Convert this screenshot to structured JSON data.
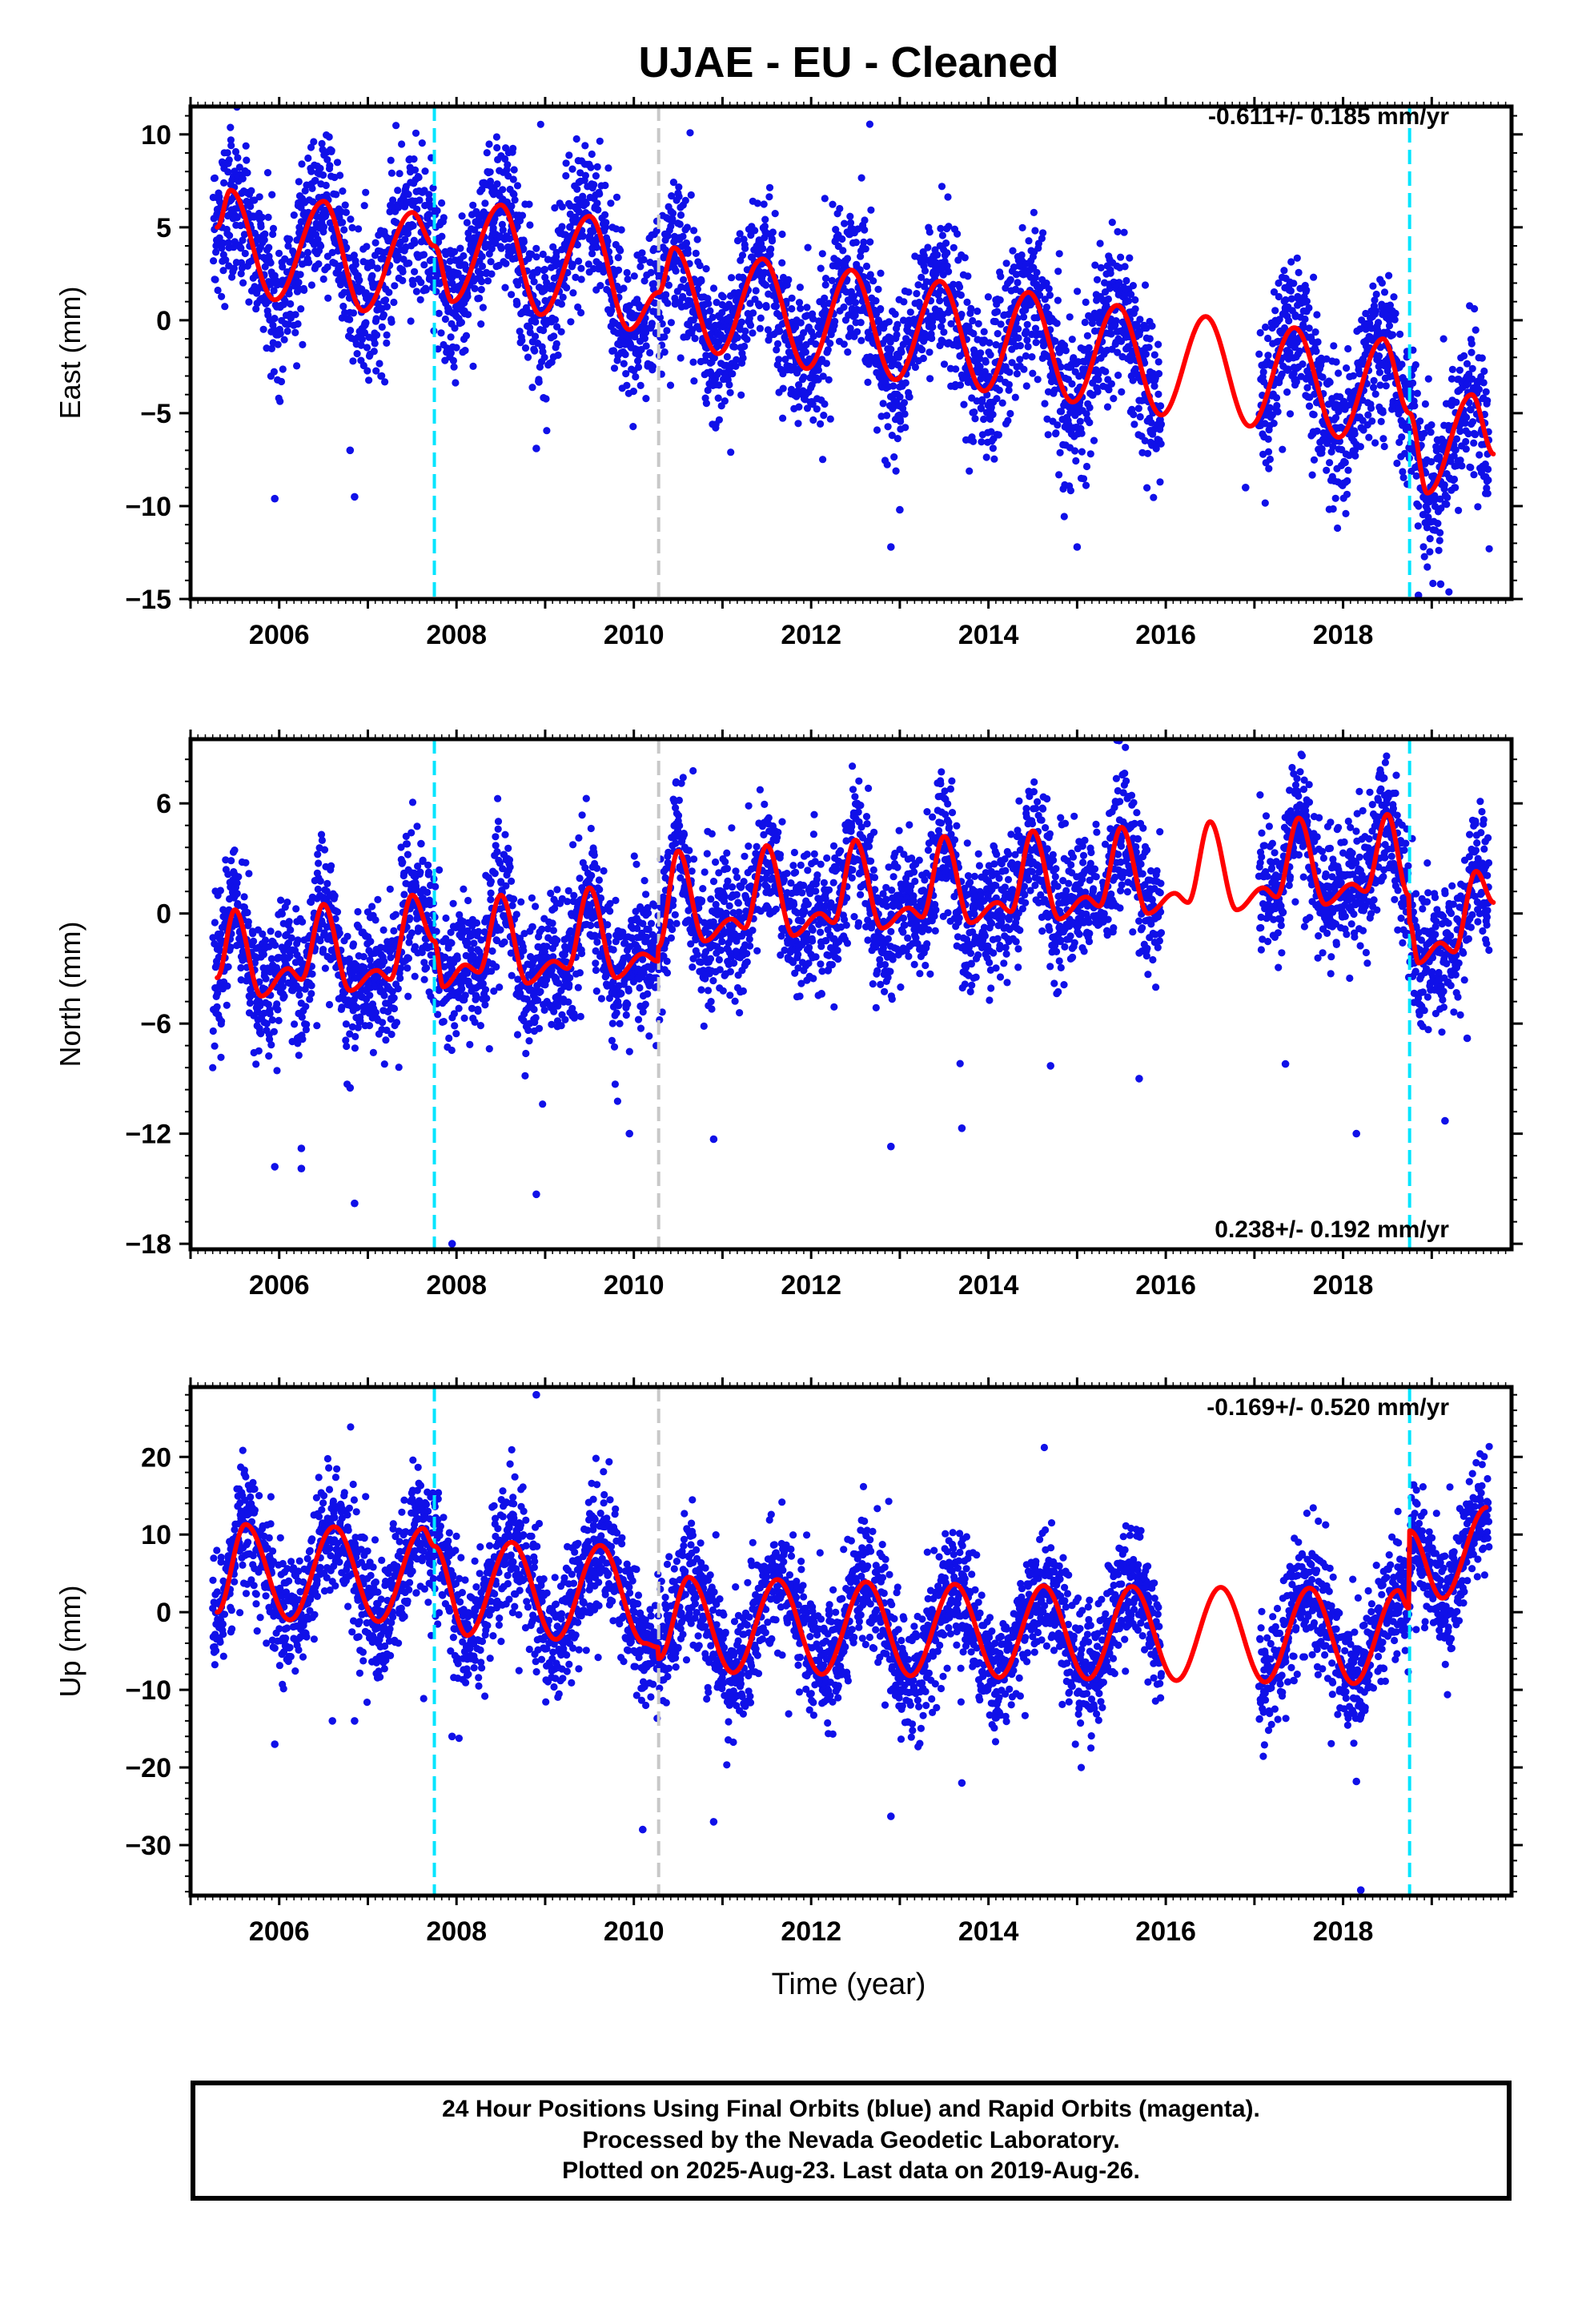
{
  "title": "UJAE  - EU - Cleaned",
  "xlabel": "Time (year)",
  "footer": {
    "line1": "24 Hour Positions Using Final Orbits (blue) and Rapid Orbits (magenta).",
    "line2": "Processed by the Nevada Geodetic Laboratory.",
    "line3": "Plotted on 2025-Aug-23. Last data on 2019-Aug-26."
  },
  "colors": {
    "points": "#1010e8",
    "model": "#ff0000",
    "equipment_change": "#00e5ff",
    "earthquake": "#c8c8c8"
  },
  "chart_data": [
    {
      "type": "scatter",
      "component": "East",
      "ylabel": "East (mm)",
      "rate": "-0.611+/- 0.185 mm/yr",
      "xlim": [
        2005.0,
        2019.9
      ],
      "ylim": [
        -15,
        11.5
      ],
      "yticks": [
        10,
        5,
        0,
        -5,
        -10,
        -15
      ],
      "xticks": [
        2006,
        2008,
        2010,
        2012,
        2014,
        2016,
        2018
      ],
      "vlines_cyan": [
        2007.75,
        2018.75
      ],
      "vlines_gray": [
        2010.28
      ],
      "model_knots": [
        [
          2005.3,
          5.0
        ],
        [
          2005.45,
          7.0
        ],
        [
          2005.95,
          1.1
        ],
        [
          2006.5,
          6.4
        ],
        [
          2006.95,
          0.5
        ],
        [
          2007.5,
          5.8
        ],
        [
          2007.75,
          4.0
        ],
        [
          2007.95,
          1.0
        ],
        [
          2008.5,
          6.2
        ],
        [
          2008.95,
          0.3
        ],
        [
          2009.5,
          5.6
        ],
        [
          2009.95,
          -0.5
        ],
        [
          2010.28,
          1.5
        ],
        [
          2010.45,
          3.9
        ],
        [
          2010.95,
          -1.8
        ],
        [
          2011.45,
          3.3
        ],
        [
          2011.95,
          -2.6
        ],
        [
          2012.45,
          2.7
        ],
        [
          2012.95,
          -3.2
        ],
        [
          2013.45,
          2.1
        ],
        [
          2013.95,
          -3.8
        ],
        [
          2014.45,
          1.5
        ],
        [
          2014.95,
          -4.4
        ],
        [
          2015.45,
          0.8
        ],
        [
          2015.95,
          -5.1
        ],
        [
          2016.45,
          0.2
        ],
        [
          2016.95,
          -5.7
        ],
        [
          2017.45,
          -0.4
        ],
        [
          2017.95,
          -6.3
        ],
        [
          2018.45,
          -1.0
        ],
        [
          2018.75,
          -5.0
        ],
        [
          2018.95,
          -9.3
        ],
        [
          2019.45,
          -4.0
        ],
        [
          2019.7,
          -7.2
        ]
      ],
      "points_summary": {
        "start": 2005.25,
        "end": 2019.65,
        "gap": [
          2015.95,
          2017.05
        ],
        "scatter_mm": 2.0
      },
      "outliers": [
        [
          2005.95,
          -9.6
        ],
        [
          2006.85,
          -9.5
        ],
        [
          2006.8,
          -7.0
        ],
        [
          2008.9,
          -6.9
        ],
        [
          2012.9,
          -12.2
        ],
        [
          2013.0,
          -10.2
        ],
        [
          2015.0,
          -12.2
        ],
        [
          2016.9,
          -9.0
        ],
        [
          2019.1,
          -14.2
        ],
        [
          2018.85,
          -14.8
        ]
      ]
    },
    {
      "type": "scatter",
      "component": "North",
      "ylabel": "North (mm)",
      "rate": "0.238+/- 0.192 mm/yr",
      "xlim": [
        2005.0,
        2019.9
      ],
      "ylim": [
        -18.3,
        9.5
      ],
      "yticks": [
        6,
        0,
        -6,
        -12,
        -18
      ],
      "xticks": [
        2006,
        2008,
        2010,
        2012,
        2014,
        2016,
        2018
      ],
      "vlines_cyan": [
        2007.75,
        2018.75
      ],
      "vlines_gray": [
        2010.28
      ],
      "model_knots": [
        [
          2005.3,
          -3.5
        ],
        [
          2005.5,
          0.2
        ],
        [
          2005.8,
          -4.5
        ],
        [
          2006.1,
          -3.0
        ],
        [
          2006.25,
          -3.6
        ],
        [
          2006.5,
          0.5
        ],
        [
          2006.8,
          -4.2
        ],
        [
          2007.1,
          -3.1
        ],
        [
          2007.25,
          -3.6
        ],
        [
          2007.5,
          1.0
        ],
        [
          2007.75,
          -1.5
        ],
        [
          2007.85,
          -4.0
        ],
        [
          2008.1,
          -2.8
        ],
        [
          2008.25,
          -3.2
        ],
        [
          2008.5,
          1.0
        ],
        [
          2008.8,
          -3.8
        ],
        [
          2009.1,
          -2.6
        ],
        [
          2009.25,
          -3.0
        ],
        [
          2009.5,
          1.4
        ],
        [
          2009.8,
          -3.5
        ],
        [
          2010.1,
          -2.2
        ],
        [
          2010.27,
          -2.6
        ],
        [
          2010.28,
          -1.8
        ],
        [
          2010.5,
          3.4
        ],
        [
          2010.8,
          -1.5
        ],
        [
          2011.1,
          -0.3
        ],
        [
          2011.25,
          -0.8
        ],
        [
          2011.5,
          3.7
        ],
        [
          2011.8,
          -1.2
        ],
        [
          2012.1,
          0.0
        ],
        [
          2012.25,
          -0.5
        ],
        [
          2012.5,
          4.0
        ],
        [
          2012.8,
          -0.8
        ],
        [
          2013.1,
          0.3
        ],
        [
          2013.25,
          -0.2
        ],
        [
          2013.5,
          4.2
        ],
        [
          2013.8,
          -0.5
        ],
        [
          2014.1,
          0.6
        ],
        [
          2014.25,
          0.1
        ],
        [
          2014.5,
          4.5
        ],
        [
          2014.8,
          -0.3
        ],
        [
          2015.1,
          0.9
        ],
        [
          2015.25,
          0.4
        ],
        [
          2015.5,
          4.7
        ],
        [
          2015.8,
          0.0
        ],
        [
          2016.1,
          1.1
        ],
        [
          2016.25,
          0.6
        ],
        [
          2016.5,
          5.0
        ],
        [
          2016.8,
          0.2
        ],
        [
          2017.1,
          1.4
        ],
        [
          2017.25,
          0.9
        ],
        [
          2017.5,
          5.2
        ],
        [
          2017.8,
          0.5
        ],
        [
          2018.1,
          1.6
        ],
        [
          2018.25,
          1.2
        ],
        [
          2018.5,
          5.4
        ],
        [
          2018.74,
          1.0
        ],
        [
          2018.75,
          -0.5
        ],
        [
          2018.85,
          -2.7
        ],
        [
          2019.1,
          -1.6
        ],
        [
          2019.25,
          -2.1
        ],
        [
          2019.5,
          2.3
        ],
        [
          2019.7,
          0.6
        ]
      ],
      "points_summary": {
        "start": 2005.25,
        "end": 2019.65,
        "gap": [
          2015.95,
          2017.05
        ],
        "scatter_mm": 1.8
      },
      "outliers": [
        [
          2005.95,
          -13.8
        ],
        [
          2006.25,
          -13.9
        ],
        [
          2006.25,
          -12.8
        ],
        [
          2006.85,
          -15.8
        ],
        [
          2006.8,
          -9.5
        ],
        [
          2007.6,
          3.8
        ],
        [
          2007.95,
          -18.0
        ],
        [
          2008.9,
          -15.3
        ],
        [
          2009.95,
          -12.0
        ],
        [
          2010.9,
          -12.3
        ],
        [
          2012.9,
          -12.7
        ],
        [
          2013.7,
          -11.7
        ],
        [
          2014.7,
          -8.3
        ],
        [
          2015.7,
          -9.0
        ],
        [
          2017.35,
          -8.2
        ],
        [
          2018.15,
          -12.0
        ],
        [
          2019.15,
          -11.3
        ],
        [
          2019.4,
          -6.8
        ]
      ]
    },
    {
      "type": "scatter",
      "component": "Up",
      "ylabel": "Up (mm)",
      "rate": "-0.169+/- 0.520 mm/yr",
      "xlim": [
        2005.0,
        2019.9
      ],
      "ylim": [
        -36.5,
        29
      ],
      "yticks": [
        20,
        10,
        0,
        -10,
        -20,
        -30
      ],
      "xticks": [
        2006,
        2008,
        2010,
        2012,
        2014,
        2016,
        2018
      ],
      "vlines_cyan": [
        2007.75,
        2018.75
      ],
      "vlines_gray": [
        2010.28
      ],
      "model_knots": [
        [
          2005.3,
          0.0
        ],
        [
          2005.62,
          11.3
        ],
        [
          2006.12,
          -1.0
        ],
        [
          2006.62,
          11.0
        ],
        [
          2007.12,
          -1.2
        ],
        [
          2007.62,
          10.8
        ],
        [
          2007.75,
          8.5
        ],
        [
          2008.12,
          -3.0
        ],
        [
          2008.62,
          9.0
        ],
        [
          2009.12,
          -3.5
        ],
        [
          2009.62,
          8.6
        ],
        [
          2010.12,
          -4.0
        ],
        [
          2010.27,
          -4.5
        ],
        [
          2010.28,
          -6.0
        ],
        [
          2010.62,
          4.5
        ],
        [
          2011.12,
          -7.8
        ],
        [
          2011.62,
          4.2
        ],
        [
          2012.12,
          -8.0
        ],
        [
          2012.62,
          3.9
        ],
        [
          2013.12,
          -8.2
        ],
        [
          2013.62,
          3.6
        ],
        [
          2014.12,
          -8.4
        ],
        [
          2014.62,
          3.4
        ],
        [
          2015.12,
          -8.6
        ],
        [
          2015.62,
          3.3
        ],
        [
          2016.12,
          -8.8
        ],
        [
          2016.62,
          3.2
        ],
        [
          2017.12,
          -9.0
        ],
        [
          2017.62,
          3.1
        ],
        [
          2018.12,
          -9.2
        ],
        [
          2018.62,
          2.8
        ],
        [
          2018.74,
          0.5
        ],
        [
          2018.75,
          10.5
        ],
        [
          2019.12,
          1.8
        ],
        [
          2019.62,
          13.5
        ]
      ],
      "points_summary": {
        "start": 2005.25,
        "end": 2019.65,
        "gap": [
          2015.95,
          2017.05
        ],
        "scatter_mm": 4.0
      },
      "outliers": [
        [
          2005.95,
          -17.0
        ],
        [
          2006.6,
          -14.0
        ],
        [
          2006.85,
          -14.0
        ],
        [
          2007.95,
          -16.0
        ],
        [
          2008.9,
          28.0
        ],
        [
          2010.1,
          -28.0
        ],
        [
          2010.9,
          -27.0
        ],
        [
          2012.9,
          -26.3
        ],
        [
          2013.7,
          -22.0
        ],
        [
          2018.2,
          -35.8
        ],
        [
          2018.15,
          -21.8
        ]
      ]
    }
  ]
}
